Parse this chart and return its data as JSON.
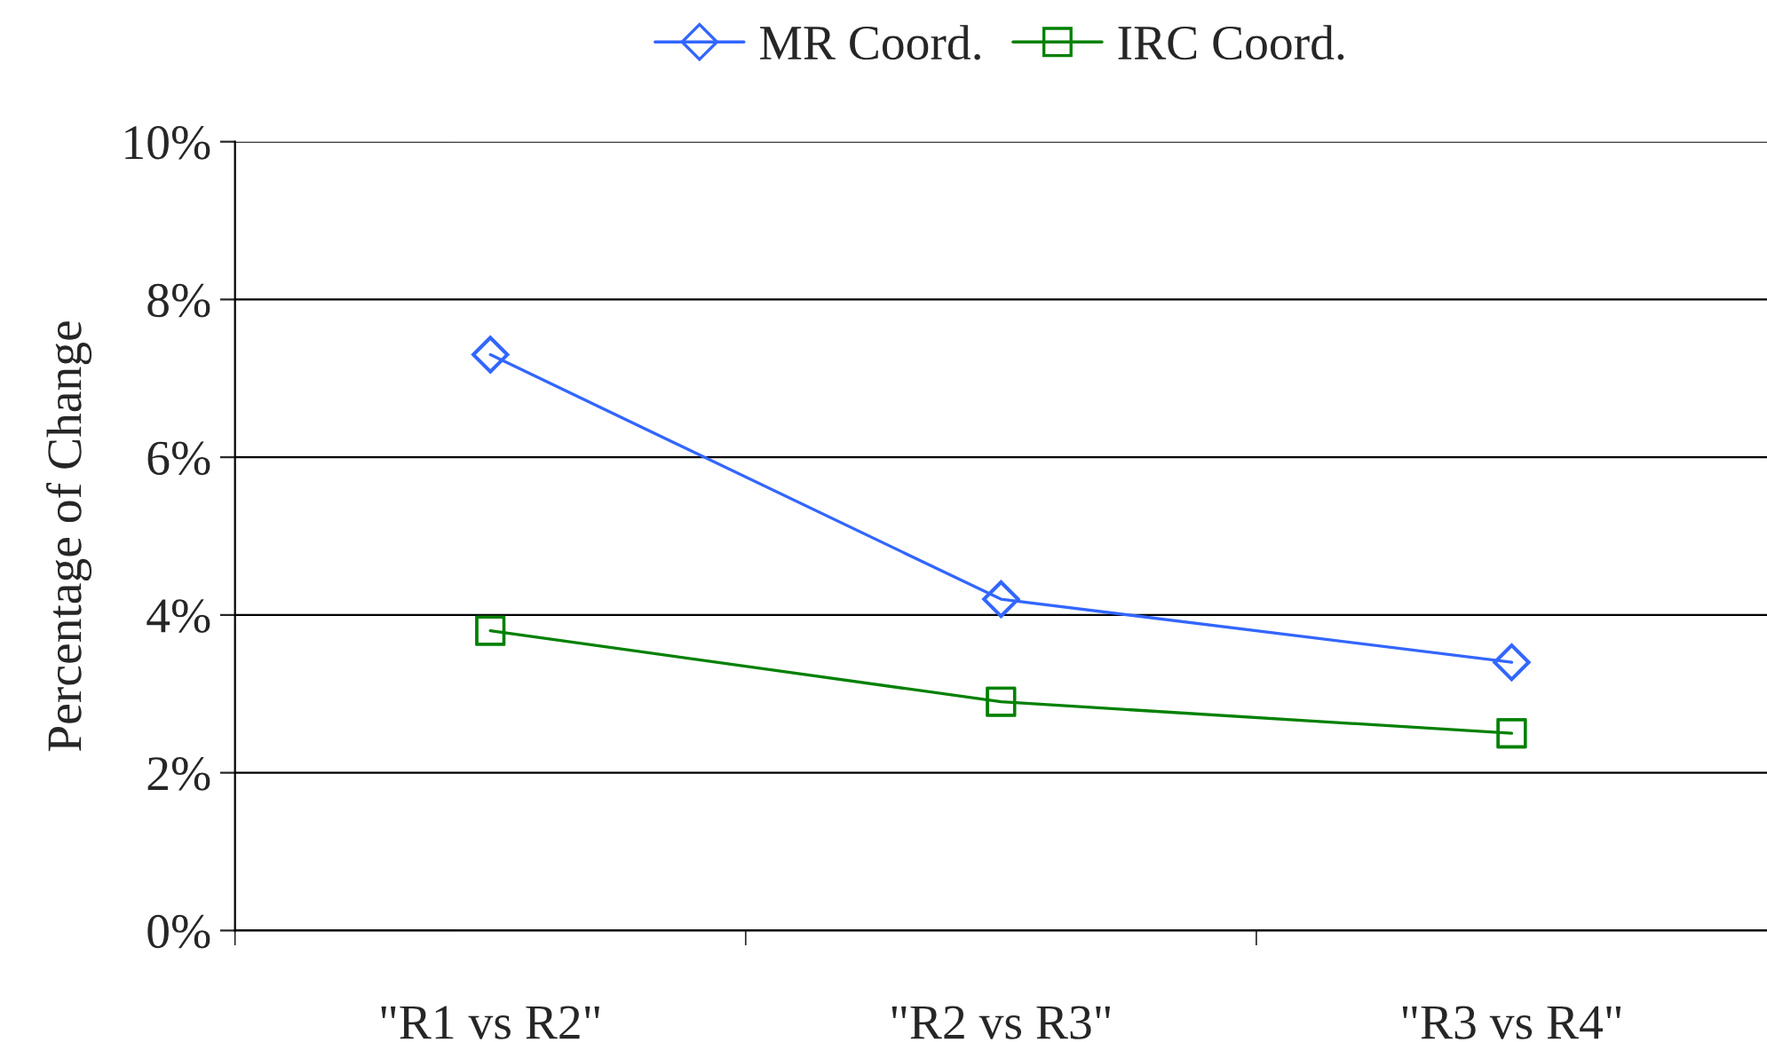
{
  "chart_data": {
    "type": "line",
    "ylabel": "Percentage of Change",
    "categories": [
      "\"R1 vs R2\"",
      "\"R2 vs R3\"",
      "\"R3 vs R4\""
    ],
    "series": [
      {
        "name": "MR Coord.",
        "color": "#3366ff",
        "marker": "diamond",
        "values": [
          7.3,
          4.2,
          3.4
        ]
      },
      {
        "name": "IRC Coord.",
        "color": "#008000",
        "marker": "square",
        "values": [
          3.8,
          2.9,
          2.5
        ]
      }
    ],
    "ylim": [
      0,
      10
    ],
    "yticks": [
      {
        "value": 0,
        "label": "0%"
      },
      {
        "value": 2,
        "label": "2%"
      },
      {
        "value": 4,
        "label": "4%"
      },
      {
        "value": 6,
        "label": "6%"
      },
      {
        "value": 8,
        "label": "8%"
      },
      {
        "value": 10,
        "label": "10%"
      }
    ],
    "grid": "y",
    "legend": "top",
    "line_style": "solid"
  }
}
